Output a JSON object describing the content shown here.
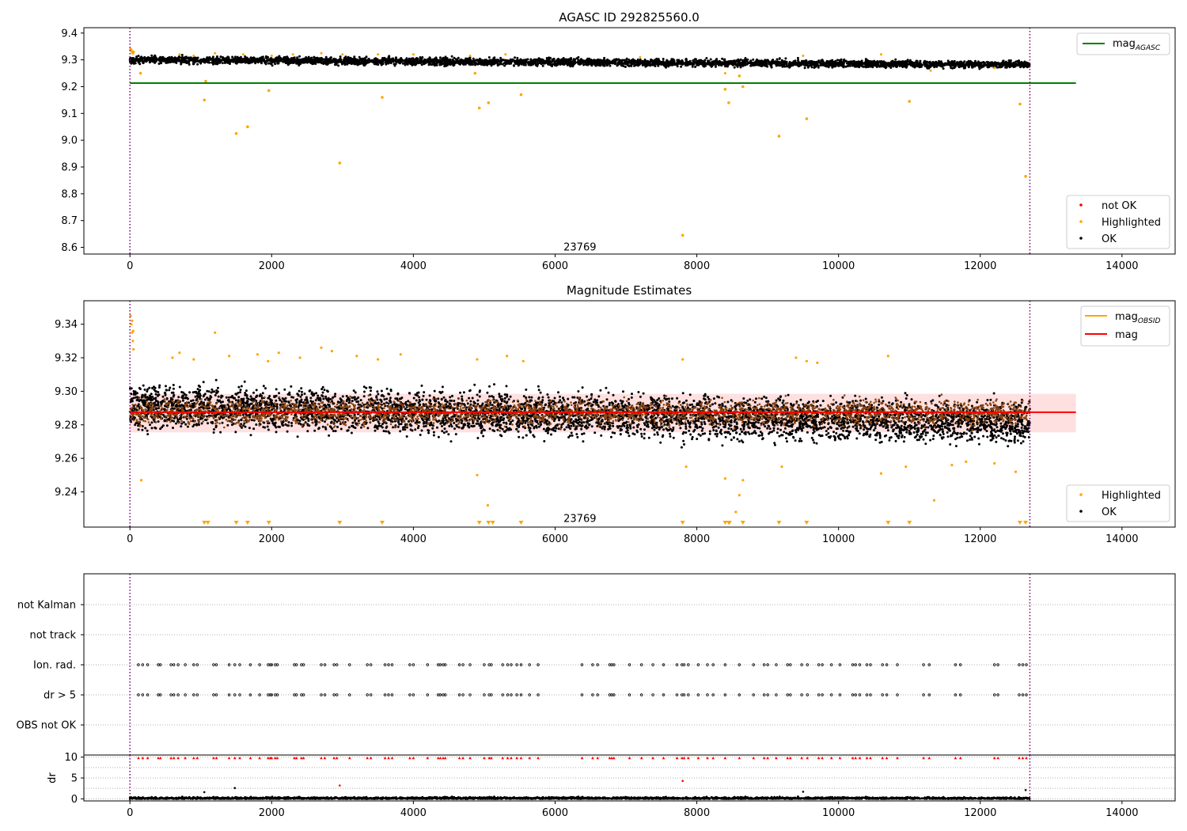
{
  "chart_data": [
    {
      "type": "scatter",
      "title": "AGASC ID 292825560.0",
      "xlim": [
        -650,
        14750
      ],
      "ylim": [
        8.575,
        9.42
      ],
      "x_ticks": [
        0,
        2000,
        4000,
        6000,
        8000,
        10000,
        12000,
        14000
      ],
      "x_tick_labels": [
        "0",
        "2000",
        "4000",
        "6000",
        "8000",
        "10000",
        "12000",
        "14000"
      ],
      "y_ticks": [
        8.6,
        8.7,
        8.8,
        8.9,
        9.0,
        9.1,
        9.2,
        9.3,
        9.4
      ],
      "y_tick_labels": [
        "8.6",
        "8.7",
        "8.8",
        "8.9",
        "9.0",
        "9.1",
        "9.2",
        "9.3",
        "9.4"
      ],
      "annotation": {
        "text": "23769",
        "x": 6350,
        "y": 8.6
      },
      "vlines": [
        {
          "x": 0,
          "color": "#800080"
        },
        {
          "x": 12700,
          "color": "#800080"
        }
      ],
      "hline": {
        "y": 9.213,
        "x": [
          0,
          13350
        ],
        "color": "#008000"
      },
      "band": {
        "from_x": 0,
        "to_x": 12700,
        "center": [
          9.3,
          9.282
        ],
        "spread": 0.013,
        "color": "#000000"
      },
      "highlighted_points": [
        [
          10,
          9.34
        ],
        [
          20,
          9.335
        ],
        [
          30,
          9.33
        ],
        [
          40,
          9.325
        ],
        [
          50,
          9.33
        ],
        [
          150,
          9.25
        ],
        [
          1050,
          9.15
        ],
        [
          1070,
          9.22
        ],
        [
          1500,
          9.025
        ],
        [
          1660,
          9.05
        ],
        [
          1960,
          9.185
        ],
        [
          2960,
          8.915
        ],
        [
          3560,
          9.16
        ],
        [
          4870,
          9.25
        ],
        [
          4930,
          9.12
        ],
        [
          5060,
          9.14
        ],
        [
          5520,
          9.17
        ],
        [
          7800,
          8.645
        ],
        [
          8400,
          9.19
        ],
        [
          8450,
          9.14
        ],
        [
          8600,
          9.24
        ],
        [
          8650,
          9.2
        ],
        [
          9160,
          9.015
        ],
        [
          9550,
          9.08
        ],
        [
          11000,
          9.145
        ],
        [
          12560,
          9.135
        ],
        [
          12640,
          8.865
        ]
      ],
      "highlighted_top_points": [
        [
          700,
          9.32
        ],
        [
          900,
          9.315
        ],
        [
          1200,
          9.325
        ],
        [
          1600,
          9.32
        ],
        [
          2000,
          9.315
        ],
        [
          2300,
          9.32
        ],
        [
          2700,
          9.325
        ],
        [
          3000,
          9.32
        ],
        [
          3500,
          9.32
        ],
        [
          4000,
          9.32
        ],
        [
          4800,
          9.315
        ],
        [
          5300,
          9.32
        ],
        [
          7200,
          9.31
        ],
        [
          8400,
          9.25
        ],
        [
          9500,
          9.315
        ],
        [
          10600,
          9.32
        ],
        [
          11300,
          9.26
        ],
        [
          12200,
          9.27
        ]
      ],
      "legends": [
        {
          "position": "upper-right",
          "entries": [
            {
              "label": "mag",
              "sub": "AGASC",
              "color": "#008000",
              "kind": "line"
            }
          ]
        },
        {
          "position": "lower-right",
          "entries": [
            {
              "label": "not OK",
              "color": "#ff0000",
              "kind": "dot"
            },
            {
              "label": "Highlighted",
              "color": "#ffa500",
              "kind": "dot"
            },
            {
              "label": "OK",
              "color": "#000000",
              "kind": "dot"
            }
          ]
        }
      ]
    },
    {
      "type": "scatter",
      "title": "Magnitude Estimates",
      "xlim": [
        -650,
        14750
      ],
      "ylim": [
        9.219,
        9.354
      ],
      "x_ticks": [
        0,
        2000,
        4000,
        6000,
        8000,
        10000,
        12000,
        14000
      ],
      "x_tick_labels": [
        "0",
        "2000",
        "4000",
        "6000",
        "8000",
        "10000",
        "12000",
        "14000"
      ],
      "y_ticks": [
        9.24,
        9.26,
        9.28,
        9.3,
        9.32,
        9.34
      ],
      "y_tick_labels": [
        "9.24",
        "9.26",
        "9.28",
        "9.30",
        "9.32",
        "9.34"
      ],
      "annotation": {
        "text": "23769",
        "x": 6350,
        "y": 9.224
      },
      "vlines": [
        {
          "x": 0,
          "color": "#800080"
        },
        {
          "x": 12700,
          "color": "#800080"
        }
      ],
      "hline": {
        "y": 9.2875,
        "x": [
          0,
          13350
        ],
        "color": "#ff0000"
      },
      "shaded_band": {
        "y": [
          9.2755,
          9.2985
        ],
        "x": [
          0,
          13350
        ],
        "color": "#ff0000",
        "opacity": 0.12
      },
      "band": {
        "from_x": 0,
        "to_x": 12700,
        "center": [
          9.291,
          9.281
        ],
        "spread": 0.012,
        "color": "#000000"
      },
      "inner_band": {
        "center": [
          9.2875,
          9.2875
        ],
        "spread": 0.007,
        "color": "#8b4513"
      },
      "highlighted_points": [
        [
          10,
          9.345
        ],
        [
          20,
          9.34
        ],
        [
          30,
          9.335
        ],
        [
          40,
          9.33
        ],
        [
          50,
          9.325
        ],
        [
          30,
          9.342
        ],
        [
          45,
          9.336
        ],
        [
          160,
          9.247
        ],
        [
          600,
          9.32
        ],
        [
          700,
          9.323
        ],
        [
          900,
          9.319
        ],
        [
          1200,
          9.335
        ],
        [
          1400,
          9.321
        ],
        [
          1800,
          9.322
        ],
        [
          1950,
          9.318
        ],
        [
          2100,
          9.323
        ],
        [
          2400,
          9.32
        ],
        [
          2700,
          9.326
        ],
        [
          2850,
          9.324
        ],
        [
          3200,
          9.321
        ],
        [
          3500,
          9.319
        ],
        [
          3820,
          9.322
        ],
        [
          4900,
          9.25
        ],
        [
          4900,
          9.319
        ],
        [
          5050,
          9.232
        ],
        [
          5320,
          9.321
        ],
        [
          5550,
          9.318
        ],
        [
          7800,
          9.319
        ],
        [
          7850,
          9.255
        ],
        [
          8400,
          9.248
        ],
        [
          8550,
          9.228
        ],
        [
          8600,
          9.238
        ],
        [
          8650,
          9.247
        ],
        [
          9200,
          9.255
        ],
        [
          9400,
          9.32
        ],
        [
          9550,
          9.318
        ],
        [
          9700,
          9.317
        ],
        [
          10600,
          9.251
        ],
        [
          10700,
          9.321
        ],
        [
          10950,
          9.255
        ],
        [
          11350,
          9.235
        ],
        [
          11600,
          9.256
        ],
        [
          11800,
          9.258
        ],
        [
          12200,
          9.257
        ],
        [
          12500,
          9.252
        ]
      ],
      "bottom_markers_x": [
        1050,
        1100,
        1500,
        1660,
        1960,
        2960,
        3560,
        4930,
        5060,
        5120,
        5520,
        7800,
        8400,
        8450,
        8460,
        8650,
        9160,
        9550,
        10700,
        11000,
        12560,
        12640
      ],
      "legends": [
        {
          "position": "upper-right",
          "entries": [
            {
              "label": "mag",
              "sub": "OBSID",
              "color": "#ffa500",
              "kind": "line"
            },
            {
              "label": "mag",
              "color": "#ff0000",
              "kind": "line"
            }
          ]
        },
        {
          "position": "lower-right",
          "entries": [
            {
              "label": "Highlighted",
              "color": "#ffa500",
              "kind": "dot"
            },
            {
              "label": "OK",
              "color": "#000000",
              "kind": "dot"
            }
          ]
        }
      ]
    },
    {
      "type": "scatter",
      "xlim": [
        -650,
        14750
      ],
      "categories": [
        "not Kalman",
        "not track",
        "Ion. rad.",
        "dr > 5",
        "OBS not OK"
      ],
      "vlines": [
        {
          "x": 0,
          "color": "#800080"
        },
        {
          "x": 12700,
          "color": "#800080"
        }
      ],
      "flag_x": [
        120,
        180,
        250,
        400,
        430,
        580,
        620,
        680,
        780,
        900,
        950,
        1180,
        1220,
        1400,
        1480,
        1550,
        1700,
        1830,
        1950,
        1980,
        2000,
        2050,
        2080,
        2320,
        2350,
        2420,
        2450,
        2700,
        2750,
        2880,
        2920,
        3100,
        3350,
        3400,
        3600,
        3650,
        3700,
        3950,
        4000,
        4200,
        4350,
        4380,
        4420,
        4450,
        4650,
        4700,
        4800,
        5000,
        5070,
        5100,
        5260,
        5330,
        5380,
        5460,
        5520,
        5640,
        5760,
        6380,
        6530,
        6600,
        6770,
        6800,
        6830,
        7050,
        7220,
        7380,
        7530,
        7720,
        7790,
        7820,
        7880,
        8020,
        8150,
        8230,
        8400,
        8600,
        8800,
        8950,
        9000,
        9120,
        9280,
        9320,
        9480,
        9560,
        9720,
        9770,
        9900,
        10020,
        10200,
        10240,
        10300,
        10400,
        10450,
        10620,
        10680,
        10830,
        11200,
        11280,
        11650,
        11720,
        12200,
        12250,
        12550,
        12600,
        12650
      ]
    },
    {
      "type": "scatter",
      "xlim": [
        -650,
        14750
      ],
      "ylabel": "dr",
      "ylim": [
        -0.5,
        10.5
      ],
      "y_ticks": [
        0,
        5,
        10
      ],
      "y_tick_labels": [
        "0",
        "5",
        "10"
      ],
      "x_ticks": [
        0,
        2000,
        4000,
        6000,
        8000,
        10000,
        12000,
        14000
      ],
      "x_tick_labels": [
        "0",
        "2000",
        "4000",
        "6000",
        "8000",
        "10000",
        "12000",
        "14000"
      ],
      "vlines": [
        {
          "x": 0,
          "color": "#800080"
        },
        {
          "x": 12700,
          "color": "#800080"
        }
      ],
      "marker_row_y": 9.8,
      "outliers": [
        [
          1050,
          1.6
        ],
        [
          1480,
          2.6
        ],
        [
          2960,
          3.2
        ],
        [
          7800,
          4.3
        ],
        [
          9500,
          1.7
        ],
        [
          12640,
          2.1
        ]
      ]
    }
  ]
}
